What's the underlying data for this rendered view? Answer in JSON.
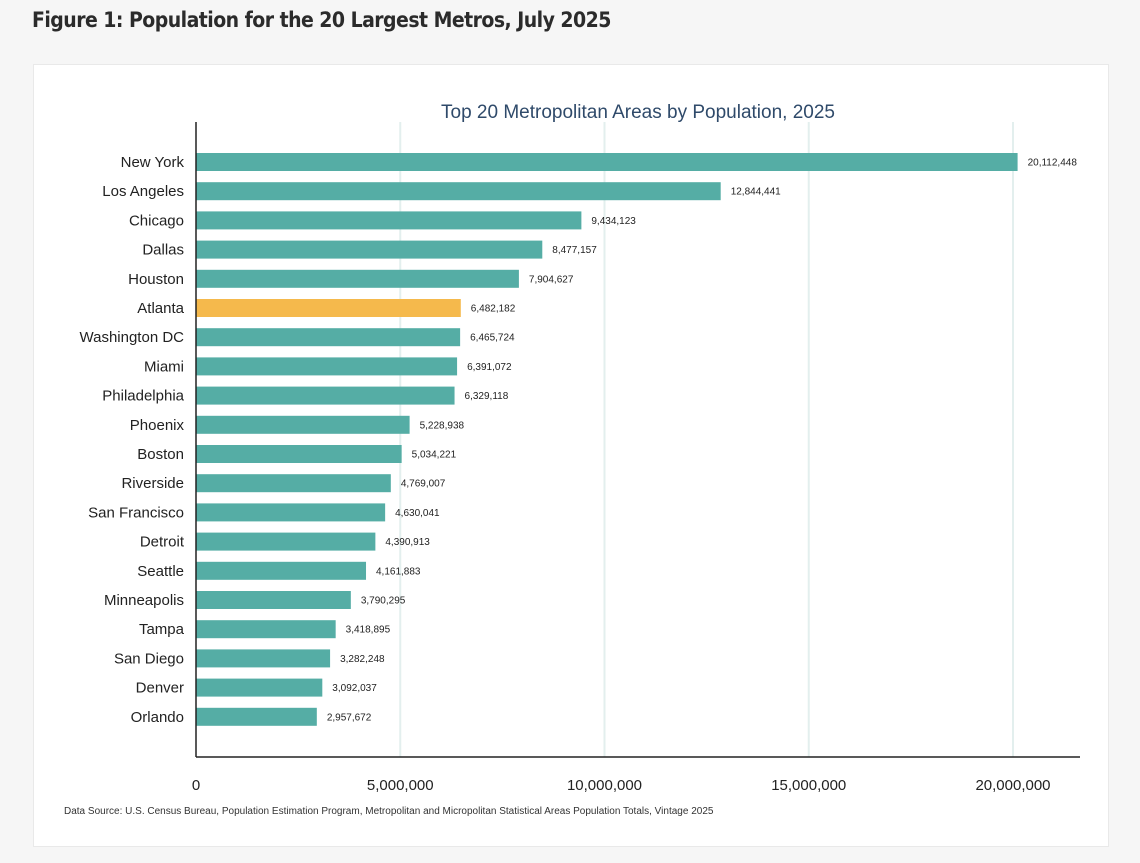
{
  "figure_title": "Figure 1: Population for the 20 Largest Metros, July 2025",
  "source_note": "Data Source: U.S. Census Bureau, Population Estimation Program, Metropolitan and Micropolitan Statistical Areas Population Totals, Vintage 2025",
  "colors": {
    "bar": "#55ada5",
    "highlight": "#f5b94c",
    "grid": "#e3efee",
    "axis": "#222222",
    "title": "#2f4a6a"
  },
  "chart_data": {
    "type": "bar",
    "orientation": "horizontal",
    "title": "Top 20 Metropolitan Areas by Population, 2025",
    "xlabel": "",
    "ylabel": "",
    "xlim": [
      0,
      21600000
    ],
    "xticks": [
      0,
      5000000,
      10000000,
      15000000,
      20000000
    ],
    "xtick_labels": [
      "0",
      "5,000,000",
      "10,000,000",
      "15,000,000",
      "20,000,000"
    ],
    "grid": "vertical",
    "highlight": "Atlanta",
    "categories": [
      "New York",
      "Los Angeles",
      "Chicago",
      "Dallas",
      "Houston",
      "Atlanta",
      "Washington DC",
      "Miami",
      "Philadelphia",
      "Phoenix",
      "Boston",
      "Riverside",
      "San Francisco",
      "Detroit",
      "Seattle",
      "Minneapolis",
      "Tampa",
      "San Diego",
      "Denver",
      "Orlando"
    ],
    "values": [
      20112448,
      12844441,
      9434123,
      8477157,
      7904627,
      6482182,
      6465724,
      6391072,
      6329118,
      5228938,
      5034221,
      4769007,
      4630041,
      4390913,
      4161883,
      3790295,
      3418895,
      3282248,
      3092037,
      2957672
    ],
    "value_labels": [
      "20,112,448",
      "12,844,441",
      "9,434,123",
      "8,477,157",
      "7,904,627",
      "6,482,182",
      "6,465,724",
      "6,391,072",
      "6,329,118",
      "5,228,938",
      "5,034,221",
      "4,769,007",
      "4,630,041",
      "4,390,913",
      "4,161,883",
      "3,790,295",
      "3,418,895",
      "3,282,248",
      "3,092,037",
      "2,957,672"
    ]
  }
}
